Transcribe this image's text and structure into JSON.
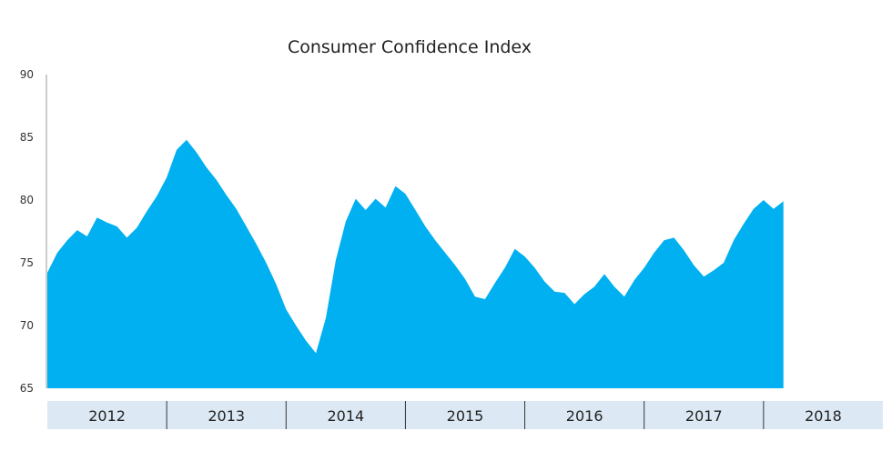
{
  "chart_data": {
    "type": "area",
    "title": "Consumer Confidence Index",
    "xlabel": "",
    "ylabel": "",
    "ylim": [
      65,
      90
    ],
    "yticks": [
      65,
      70,
      75,
      80,
      85,
      90
    ],
    "year_labels": [
      "2012",
      "2013",
      "2014",
      "2015",
      "2016",
      "2017",
      "2018"
    ],
    "x_start_year": 2012,
    "x_span_years": 7,
    "grid": false,
    "colors": {
      "area": "#00b0f0",
      "year_band": "#dce9f5",
      "axis": "#999999",
      "divider": "#333333"
    },
    "series": [
      {
        "values": [
          74.2,
          75.8,
          76.8,
          77.6,
          77.1,
          78.6,
          78.2,
          77.9,
          77.0,
          77.8,
          79.1,
          80.3,
          81.8,
          84.0,
          84.8,
          83.8,
          82.6,
          81.6,
          80.4,
          79.3,
          77.9,
          76.5,
          75.0,
          73.3,
          71.3,
          70.0,
          68.8,
          67.8,
          70.6,
          75.2,
          78.3,
          80.1,
          79.2,
          80.1,
          79.4,
          81.1,
          80.5,
          79.2,
          77.9,
          76.8,
          75.8,
          74.8,
          73.7,
          72.3,
          72.1,
          73.4,
          74.6,
          76.1,
          75.5,
          74.6,
          73.5,
          72.7,
          72.6,
          71.7,
          72.5,
          73.1,
          74.1,
          73.1,
          72.3,
          73.6,
          74.6,
          75.8,
          76.8,
          77.0,
          76.0,
          74.8,
          73.9,
          74.4,
          75.0,
          76.8,
          78.1,
          79.3,
          80.0,
          79.3,
          79.9
        ]
      }
    ]
  }
}
